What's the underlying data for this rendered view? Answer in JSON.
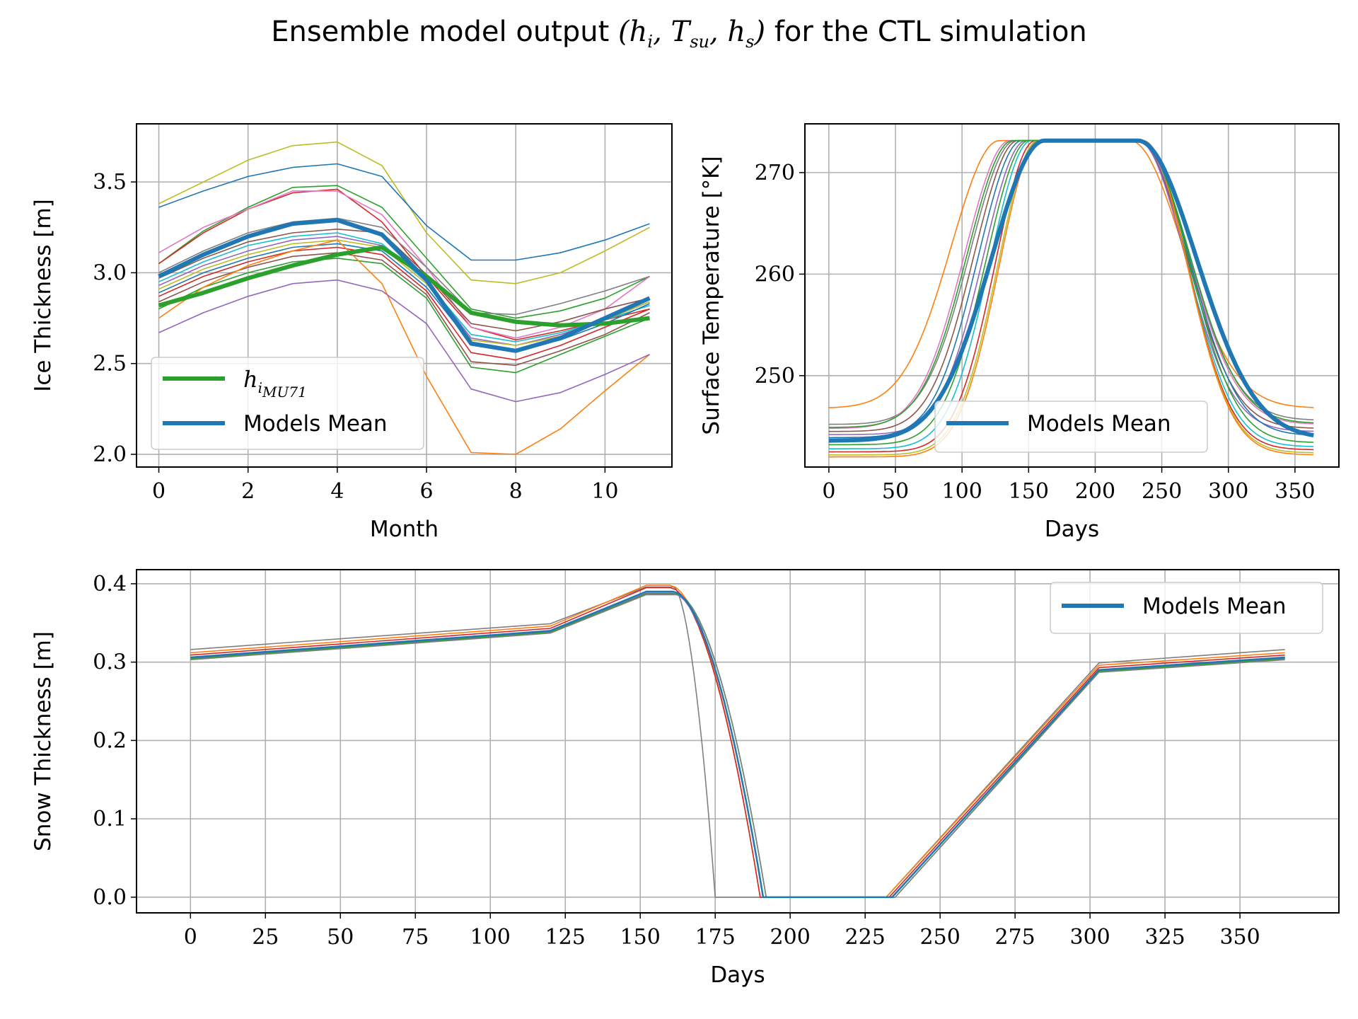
{
  "figure": {
    "title_text": "Ensemble model output",
    "title_math": "(h_i, T_su, h_s)",
    "title_suffix": "for the CTL simulation"
  },
  "colors": {
    "mean": "#1f77b4",
    "obs": "#2ca02c",
    "grid": "#b0b0b0",
    "palette": [
      "#1f77b4",
      "#ff7f0e",
      "#2ca02c",
      "#d62728",
      "#9467bd",
      "#8c564b",
      "#e377c2",
      "#7f7f7f",
      "#bcbd22",
      "#17becf"
    ]
  },
  "chart_data": [
    {
      "id": "ice",
      "type": "line",
      "xlabel": "Month",
      "ylabel": "Ice Thickness [m]",
      "xlim": [
        -0.5,
        11.5
      ],
      "ylim": [
        1.93,
        3.82
      ],
      "xticks": [
        0,
        2,
        4,
        6,
        8,
        10
      ],
      "yticks": [
        2.0,
        2.5,
        3.0,
        3.5
      ],
      "ytick_labels": [
        "2.0",
        "2.5",
        "3.0",
        "3.5"
      ],
      "grid": true,
      "legend_position": "lower left",
      "x": [
        0,
        1,
        2,
        3,
        4,
        5,
        6,
        7,
        8,
        9,
        10,
        11
      ],
      "members": [
        [
          3.38,
          3.5,
          3.62,
          3.7,
          3.72,
          3.59,
          3.22,
          2.96,
          2.94,
          3.0,
          3.12,
          3.25
        ],
        [
          3.36,
          3.45,
          3.53,
          3.58,
          3.6,
          3.53,
          3.26,
          3.07,
          3.07,
          3.11,
          3.18,
          3.27
        ],
        [
          3.05,
          3.23,
          3.36,
          3.47,
          3.48,
          3.36,
          3.08,
          2.8,
          2.75,
          2.79,
          2.86,
          2.98
        ],
        [
          3.05,
          3.22,
          3.35,
          3.44,
          3.46,
          3.28,
          2.98,
          2.7,
          2.63,
          2.68,
          2.74,
          2.8
        ],
        [
          3.11,
          3.25,
          3.35,
          3.45,
          3.45,
          3.32,
          3.03,
          2.7,
          2.64,
          2.7,
          2.8,
          2.98
        ],
        [
          3.0,
          3.12,
          3.22,
          3.28,
          3.3,
          3.25,
          3.03,
          2.78,
          2.77,
          2.83,
          2.9,
          2.98
        ],
        [
          2.97,
          3.08,
          3.17,
          3.22,
          3.24,
          3.22,
          2.99,
          2.72,
          2.68,
          2.73,
          2.8,
          2.86
        ],
        [
          2.95,
          3.06,
          3.15,
          3.2,
          3.22,
          3.16,
          2.95,
          2.66,
          2.62,
          2.67,
          2.74,
          2.82
        ],
        [
          2.93,
          3.04,
          3.12,
          3.18,
          3.2,
          3.15,
          2.96,
          2.64,
          2.6,
          2.66,
          2.74,
          2.84
        ],
        [
          2.91,
          3.02,
          3.1,
          3.16,
          3.18,
          3.14,
          2.94,
          2.63,
          2.6,
          2.65,
          2.74,
          2.84
        ],
        [
          2.89,
          3.0,
          3.08,
          3.14,
          3.16,
          3.12,
          2.92,
          2.61,
          2.57,
          2.63,
          2.72,
          2.83
        ],
        [
          2.87,
          2.98,
          3.06,
          3.12,
          3.14,
          3.1,
          2.9,
          2.56,
          2.52,
          2.6,
          2.7,
          2.8
        ],
        [
          2.84,
          2.95,
          3.03,
          3.09,
          3.11,
          3.07,
          2.88,
          2.51,
          2.49,
          2.57,
          2.66,
          2.78
        ],
        [
          2.8,
          2.92,
          3.0,
          3.06,
          3.08,
          3.05,
          2.86,
          2.48,
          2.45,
          2.55,
          2.65,
          2.75
        ],
        [
          2.75,
          2.92,
          3.04,
          3.12,
          3.18,
          2.94,
          2.43,
          2.01,
          2.0,
          2.14,
          2.35,
          2.55
        ],
        [
          2.67,
          2.78,
          2.87,
          2.94,
          2.96,
          2.9,
          2.72,
          2.36,
          2.29,
          2.34,
          2.44,
          2.55
        ]
      ],
      "member_colors": [
        "#bcbd22",
        "#1f77b4",
        "#2ca02c",
        "#d62728",
        "#e377c2",
        "#7f7f7f",
        "#8c564b",
        "#17becf",
        "#9467bd",
        "#bcbd22",
        "#1f77b4",
        "#d62728",
        "#8c564b",
        "#2ca02c",
        "#ff7f0e",
        "#9467bd"
      ],
      "series": [
        {
          "name": "Models Mean",
          "values": [
            2.98,
            3.1,
            3.2,
            3.27,
            3.29,
            3.21,
            2.96,
            2.61,
            2.57,
            2.64,
            2.75,
            2.86
          ]
        },
        {
          "name_math": "h_i",
          "name_sub": "MU71",
          "values": [
            2.82,
            2.89,
            2.97,
            3.04,
            3.1,
            3.14,
            2.98,
            2.78,
            2.73,
            2.71,
            2.72,
            2.75
          ]
        }
      ]
    },
    {
      "id": "temp",
      "type": "line",
      "xlabel": "Days",
      "ylabel": "Surface Temperature [°K]",
      "xlim": [
        -18,
        383
      ],
      "ylim": [
        241,
        274.8
      ],
      "xticks": [
        0,
        50,
        100,
        150,
        200,
        250,
        300,
        350
      ],
      "yticks": [
        250,
        260,
        270
      ],
      "grid": true,
      "legend_position": "lower center",
      "members": [
        {
          "base": 246.8,
          "t1": 128,
          "t2": 226,
          "w": 36,
          "end": 246.8
        },
        {
          "base": 245.2,
          "t1": 140,
          "t2": 232,
          "w": 34,
          "end": 245.6
        },
        {
          "base": 244.8,
          "t1": 136,
          "t2": 232,
          "w": 34,
          "end": 245.2
        },
        {
          "base": 244.5,
          "t1": 142,
          "t2": 232,
          "w": 33,
          "end": 244.8
        },
        {
          "base": 244.2,
          "t1": 148,
          "t2": 232,
          "w": 32,
          "end": 244.5
        },
        {
          "base": 243.9,
          "t1": 145,
          "t2": 234,
          "w": 33,
          "end": 244.1
        },
        {
          "base": 243.2,
          "t1": 150,
          "t2": 235,
          "w": 32,
          "end": 243.4
        },
        {
          "base": 242.8,
          "t1": 152,
          "t2": 235,
          "w": 31,
          "end": 243.0
        },
        {
          "base": 242.5,
          "t1": 155,
          "t2": 236,
          "w": 30,
          "end": 242.7
        },
        {
          "base": 242.2,
          "t1": 157,
          "t2": 236,
          "w": 30,
          "end": 242.4
        },
        {
          "base": 242.0,
          "t1": 158,
          "t2": 236,
          "w": 30,
          "end": 242.2
        },
        {
          "base": 244.9,
          "t1": 138,
          "t2": 233,
          "w": 34,
          "end": 245.3
        }
      ],
      "member_colors": [
        "#ff7f0e",
        "#7f7f7f",
        "#e377c2",
        "#8c564b",
        "#9467bd",
        "#1f77b4",
        "#2ca02c",
        "#17becf",
        "#d62728",
        "#bcbd22",
        "#ff7f0e",
        "#2ca02c"
      ],
      "series": [
        {
          "name": "Models Mean",
          "base": 243.6,
          "t1": 162,
          "t2": 232,
          "w": 40,
          "end": 243.8
        }
      ]
    },
    {
      "id": "snow",
      "type": "line",
      "xlabel": "Days",
      "ylabel": "Snow Thickness [m]",
      "xlim": [
        -18,
        383
      ],
      "ylim": [
        -0.02,
        0.418
      ],
      "xticks": [
        0,
        25,
        50,
        75,
        100,
        125,
        150,
        175,
        200,
        225,
        250,
        275,
        300,
        325,
        350
      ],
      "yticks": [
        0.0,
        0.1,
        0.2,
        0.3,
        0.4
      ],
      "ytick_labels": [
        "0.0",
        "0.1",
        "0.2",
        "0.3",
        "0.4"
      ],
      "grid": true,
      "legend_position": "upper right",
      "members": [
        {
          "s0": 0.316,
          "s120": 0.349,
          "peak": 0.396,
          "t_peak": 152,
          "t_melt": 161,
          "t_zero": 175,
          "t_rise": 232,
          "s_303": 0.299,
          "s_end": 0.316
        },
        {
          "s0": 0.312,
          "s120": 0.346,
          "peak": 0.398,
          "t_peak": 152,
          "t_melt": 160,
          "t_zero": 190,
          "t_rise": 232,
          "s_303": 0.296,
          "s_end": 0.312
        },
        {
          "s0": 0.309,
          "s120": 0.343,
          "peak": 0.395,
          "t_peak": 152,
          "t_melt": 160,
          "t_zero": 190,
          "t_rise": 233,
          "s_303": 0.293,
          "s_end": 0.309
        },
        {
          "s0": 0.306,
          "s120": 0.34,
          "peak": 0.39,
          "t_peak": 152,
          "t_melt": 161,
          "t_zero": 191,
          "t_rise": 234,
          "s_303": 0.29,
          "s_end": 0.306
        },
        {
          "s0": 0.305,
          "s120": 0.339,
          "peak": 0.388,
          "t_peak": 152,
          "t_melt": 161,
          "t_zero": 191,
          "t_rise": 234,
          "s_303": 0.289,
          "s_end": 0.305
        },
        {
          "s0": 0.304,
          "s120": 0.338,
          "peak": 0.387,
          "t_peak": 152,
          "t_melt": 162,
          "t_zero": 192,
          "t_rise": 235,
          "s_303": 0.288,
          "s_end": 0.304
        },
        {
          "s0": 0.303,
          "s120": 0.337,
          "peak": 0.386,
          "t_peak": 152,
          "t_melt": 162,
          "t_zero": 192,
          "t_rise": 235,
          "s_303": 0.287,
          "s_end": 0.303
        }
      ],
      "member_colors": [
        "#7f7f7f",
        "#ff7f0e",
        "#d62728",
        "#17becf",
        "#9467bd",
        "#2ca02c",
        "#7f7f7f"
      ],
      "series": [
        {
          "name": "Models Mean",
          "s0": 0.306,
          "s120": 0.34,
          "peak": 0.39,
          "t_peak": 152,
          "t_melt": 161,
          "t_zero": 191,
          "t_rise": 234,
          "s_303": 0.29,
          "s_end": 0.306
        }
      ]
    }
  ]
}
